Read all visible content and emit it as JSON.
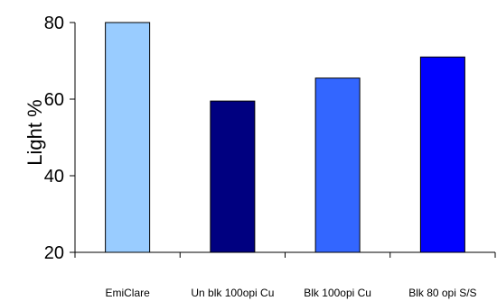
{
  "chart_data": {
    "type": "bar",
    "title": "",
    "xlabel": "",
    "ylabel": "Light %",
    "ylim": [
      20,
      80
    ],
    "yticks": [
      "20",
      "40",
      "60",
      "80"
    ],
    "grid": false,
    "legend": "none",
    "categories": [
      "EmiClare",
      "Un blk 100opi  Cu",
      "Blk 100opi  Cu",
      "Blk 80 opi S/S"
    ],
    "values": [
      80,
      59.5,
      65.5,
      71
    ],
    "colors": [
      "#99ccff",
      "#000080",
      "#3366ff",
      "#0000ff"
    ]
  }
}
